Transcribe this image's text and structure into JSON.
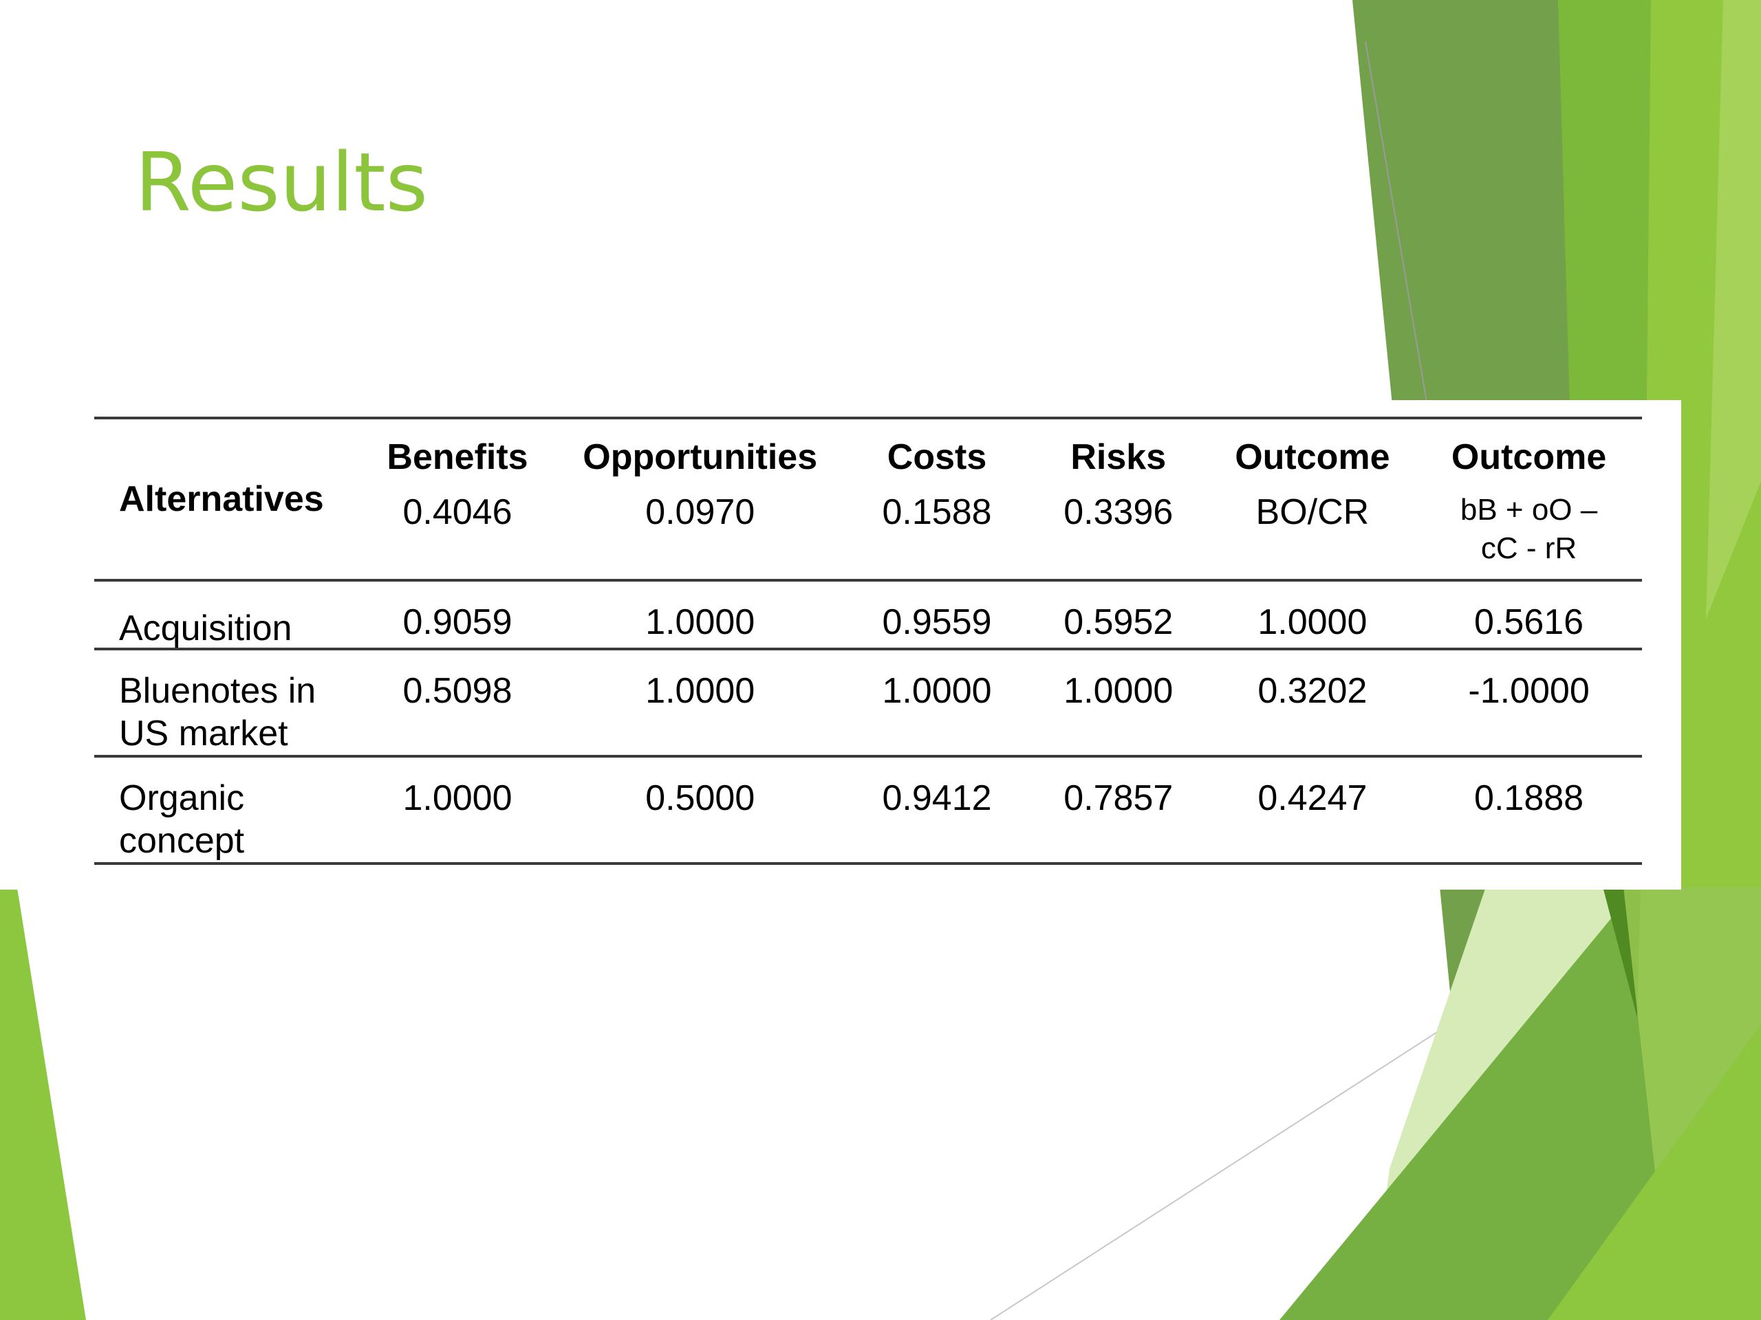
{
  "slide": {
    "title": "Results"
  },
  "table": {
    "header": {
      "alternatives_label": "Alternatives",
      "columns": [
        {
          "name": "Benefits",
          "weight": "0.4046"
        },
        {
          "name": "Opportunities",
          "weight": "0.0970"
        },
        {
          "name": "Costs",
          "weight": "0.1588"
        },
        {
          "name": "Risks",
          "weight": "0.3396"
        },
        {
          "name": "Outcome",
          "weight": "BO/CR"
        },
        {
          "name": "Outcome",
          "weight": "bB + oO –\ncC - rR"
        }
      ]
    },
    "rows": [
      {
        "label": "Acquisition",
        "values": [
          "0.9059",
          "1.0000",
          "0.9559",
          "0.5952",
          "1.0000",
          "0.5616"
        ]
      },
      {
        "label": "Bluenotes in US market",
        "values": [
          "0.5098",
          "1.0000",
          "1.0000",
          "1.0000",
          "0.3202",
          "-1.0000"
        ]
      },
      {
        "label": "Organic concept",
        "values": [
          "1.0000",
          "0.5000",
          "0.9412",
          "0.7857",
          "0.4247",
          "0.1888"
        ]
      }
    ]
  },
  "theme": {
    "title_color": "#8cc43c",
    "accent_green": "#8dc63f",
    "dark_green": "#5b8f2a",
    "mid_green": "#76b043",
    "pale_green": "#d6ebb8"
  }
}
